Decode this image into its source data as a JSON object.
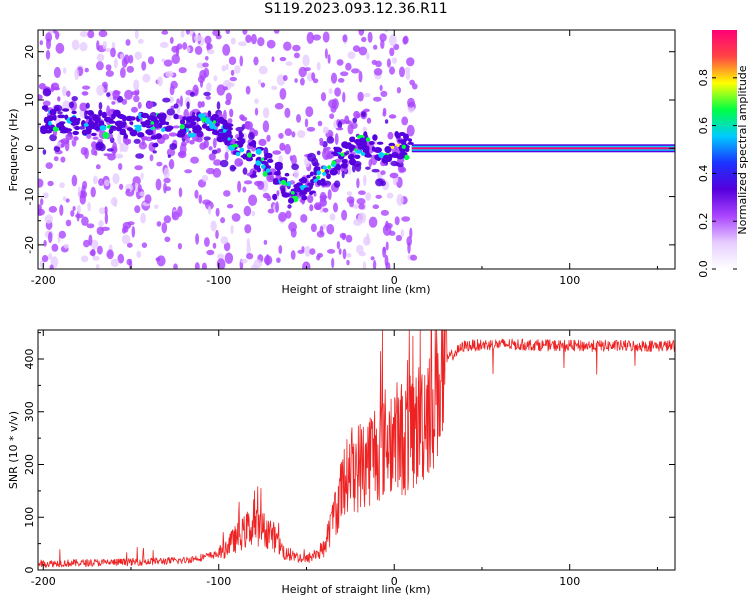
{
  "title": "S119.2023.093.12.36.R11",
  "chart_data": [
    {
      "type": "heatmap",
      "xlabel": "Height of straight line (km)",
      "ylabel": "Frequency (Hz)",
      "xlim": [
        -203,
        160
      ],
      "ylim": [
        -25,
        24.5
      ],
      "x_ticks": [
        -200,
        -100,
        0,
        100
      ],
      "y_ticks": [
        -20,
        -10,
        0,
        10,
        20
      ],
      "colorbar": {
        "label": "Normalized spectral amplitude",
        "range": [
          0,
          1
        ],
        "ticks": [
          "0.0",
          "0.2",
          "0.4",
          "0.6",
          "0.8"
        ],
        "colors": [
          "#ffffff",
          "#e6ccff",
          "#aa44ff",
          "#5500dd",
          "#1a33ff",
          "#00ccff",
          "#00ff44",
          "#ffff00",
          "#ff4444",
          "#ff0077"
        ]
      },
      "ridge": [
        {
          "x": -200,
          "y": 6
        },
        {
          "x": -180,
          "y": 5.5
        },
        {
          "x": -160,
          "y": 5
        },
        {
          "x": -140,
          "y": 4.5
        },
        {
          "x": -120,
          "y": 5
        },
        {
          "x": -105,
          "y": 5
        },
        {
          "x": -95,
          "y": 3
        },
        {
          "x": -85,
          "y": 0
        },
        {
          "x": -75,
          "y": -3
        },
        {
          "x": -65,
          "y": -6
        },
        {
          "x": -55,
          "y": -10
        },
        {
          "x": -48,
          "y": -7
        },
        {
          "x": -40,
          "y": -5
        },
        {
          "x": -33,
          "y": -2
        },
        {
          "x": -25,
          "y": -0.5
        },
        {
          "x": -15,
          "y": 1
        },
        {
          "x": -8,
          "y": -1
        },
        {
          "x": 0,
          "y": 1
        },
        {
          "x": 10,
          "y": 0
        },
        {
          "x": 160,
          "y": 0
        }
      ],
      "steady_line": {
        "x_start": 10,
        "x_end": 160,
        "y": 0,
        "amplitude": 0.95
      }
    },
    {
      "type": "line",
      "xlabel": "Height of straight line (km)",
      "ylabel": "SNR (10 * v/v)",
      "xlim": [
        -203,
        160
      ],
      "ylim": [
        0,
        455
      ],
      "x_ticks": [
        -200,
        -100,
        0,
        100
      ],
      "y_ticks": [
        0,
        100,
        200,
        300,
        400
      ],
      "color": "#ee2222",
      "envelope": [
        {
          "x": -203,
          "y": 12
        },
        {
          "x": -150,
          "y": 15
        },
        {
          "x": -120,
          "y": 18
        },
        {
          "x": -100,
          "y": 30
        },
        {
          "x": -90,
          "y": 60
        },
        {
          "x": -80,
          "y": 85
        },
        {
          "x": -70,
          "y": 70
        },
        {
          "x": -62,
          "y": 30
        },
        {
          "x": -50,
          "y": 20
        },
        {
          "x": -40,
          "y": 40
        },
        {
          "x": -32,
          "y": 130
        },
        {
          "x": -25,
          "y": 190
        },
        {
          "x": -18,
          "y": 200
        },
        {
          "x": -10,
          "y": 230
        },
        {
          "x": -2,
          "y": 250
        },
        {
          "x": 8,
          "y": 250
        },
        {
          "x": 15,
          "y": 280
        },
        {
          "x": 22,
          "y": 340
        },
        {
          "x": 30,
          "y": 400
        },
        {
          "x": 40,
          "y": 425
        },
        {
          "x": 60,
          "y": 428
        },
        {
          "x": 100,
          "y": 425
        },
        {
          "x": 160,
          "y": 425
        }
      ]
    }
  ]
}
